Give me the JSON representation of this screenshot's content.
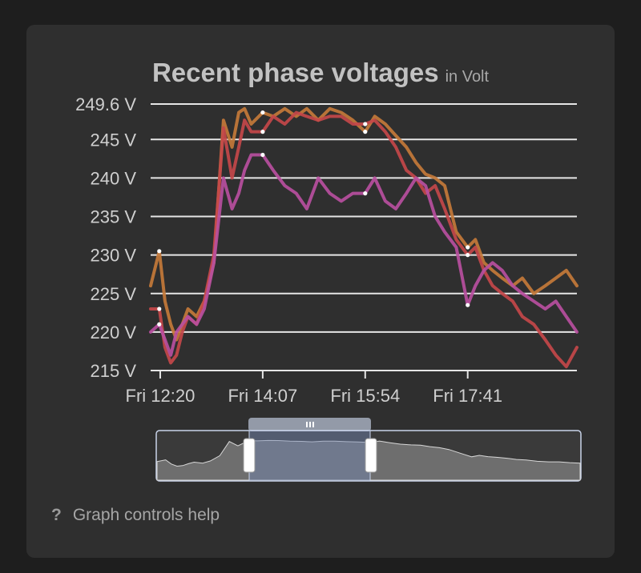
{
  "card": {
    "title": "Recent phase voltages",
    "unit_label": "in Volt"
  },
  "help": {
    "icon": "question-mark-icon",
    "label": "Graph controls help"
  },
  "colors": {
    "background": "#1e1e1e",
    "card": "#2f2f2f",
    "grid": "#e6e6e6",
    "navigator_fill": "#5a6a8a",
    "navigator_border": "#c9d4ea"
  },
  "chart_data": {
    "type": "line",
    "ylim": [
      215,
      249.6
    ],
    "y_ticks": [
      215,
      220,
      225,
      230,
      235,
      240,
      245,
      249.6
    ],
    "y_tick_labels": [
      "215 V",
      "220 V",
      "225 V",
      "230 V",
      "235 V",
      "240 V",
      "245 V",
      "249.6 V"
    ],
    "x_tick_labels": [
      "Fri 12:20",
      "Fri 14:07",
      "Fri 15:54",
      "Fri 17:41"
    ],
    "x_ticks": [
      "12:20",
      "14:07",
      "15:54",
      "17:41"
    ],
    "xlim": [
      "12:10",
      "19:35"
    ],
    "grid": true,
    "series": [
      {
        "color": "#c47a3a",
        "x": [
          "12:10",
          "12:19",
          "12:25",
          "12:31",
          "12:37",
          "12:43",
          "12:49",
          "12:58",
          "13:06",
          "13:16",
          "13:26",
          "13:35",
          "13:42",
          "13:48",
          "13:55",
          "14:07",
          "14:18",
          "14:30",
          "14:42",
          "14:53",
          "15:05",
          "15:17",
          "15:29",
          "15:41",
          "15:54",
          "16:04",
          "16:15",
          "16:26",
          "16:37",
          "16:47",
          "16:57",
          "17:07",
          "17:17",
          "17:29",
          "17:41",
          "17:49",
          "17:58",
          "18:07",
          "18:17",
          "18:28",
          "18:38",
          "18:50",
          "19:02",
          "19:13",
          "19:24",
          "19:35"
        ],
        "values": [
          226,
          230.5,
          224,
          221,
          219,
          221,
          223,
          222,
          224,
          229,
          247.5,
          244,
          248.5,
          249,
          247,
          248.5,
          248,
          249,
          248,
          249,
          247.5,
          249,
          248.5,
          247.5,
          246,
          248,
          247,
          245.5,
          244,
          242,
          240.5,
          240,
          239,
          233,
          231,
          232,
          229,
          228,
          227,
          226,
          227,
          225,
          226,
          227,
          228,
          226
        ]
      },
      {
        "color": "#c4484a",
        "x": [
          "12:10",
          "12:19",
          "12:25",
          "12:31",
          "12:37",
          "12:43",
          "12:49",
          "12:58",
          "13:06",
          "13:16",
          "13:26",
          "13:35",
          "13:42",
          "13:48",
          "13:55",
          "14:07",
          "14:18",
          "14:30",
          "14:42",
          "14:53",
          "15:05",
          "15:17",
          "15:29",
          "15:41",
          "15:54",
          "16:04",
          "16:15",
          "16:26",
          "16:37",
          "16:47",
          "16:57",
          "17:07",
          "17:17",
          "17:29",
          "17:41",
          "17:49",
          "17:58",
          "18:07",
          "18:17",
          "18:28",
          "18:38",
          "18:50",
          "19:02",
          "19:13",
          "19:24",
          "19:35"
        ],
        "values": [
          223,
          223,
          218,
          216,
          217,
          220,
          222,
          221,
          224,
          230,
          246.5,
          240,
          244,
          247.5,
          246,
          246,
          248,
          247,
          248.5,
          248,
          247.5,
          248,
          248,
          247,
          247,
          247.5,
          246,
          244,
          241,
          240,
          238,
          239,
          236,
          232,
          230,
          231,
          228,
          226,
          225,
          224,
          222,
          221,
          219,
          217,
          215.5,
          218
        ]
      },
      {
        "color": "#b84fa0",
        "x": [
          "12:10",
          "12:19",
          "12:25",
          "12:31",
          "12:37",
          "12:43",
          "12:49",
          "12:58",
          "13:06",
          "13:16",
          "13:26",
          "13:35",
          "13:42",
          "13:48",
          "13:55",
          "14:07",
          "14:18",
          "14:30",
          "14:42",
          "14:53",
          "15:05",
          "15:17",
          "15:29",
          "15:41",
          "15:54",
          "16:04",
          "16:15",
          "16:26",
          "16:37",
          "16:47",
          "16:57",
          "17:07",
          "17:17",
          "17:29",
          "17:41",
          "17:49",
          "17:58",
          "18:07",
          "18:17",
          "18:28",
          "18:38",
          "18:50",
          "19:02",
          "19:13",
          "19:24",
          "19:35"
        ],
        "values": [
          220,
          221,
          219,
          217,
          220,
          221,
          222,
          221,
          223,
          229,
          240,
          236,
          238,
          241,
          243,
          243,
          241,
          239,
          238,
          236,
          240,
          238,
          237,
          238,
          238,
          240,
          237,
          236,
          238,
          240,
          239,
          235,
          233,
          231,
          223.5,
          226,
          228,
          229,
          228,
          226,
          225,
          224,
          223,
          224,
          222,
          220
        ]
      }
    ]
  }
}
